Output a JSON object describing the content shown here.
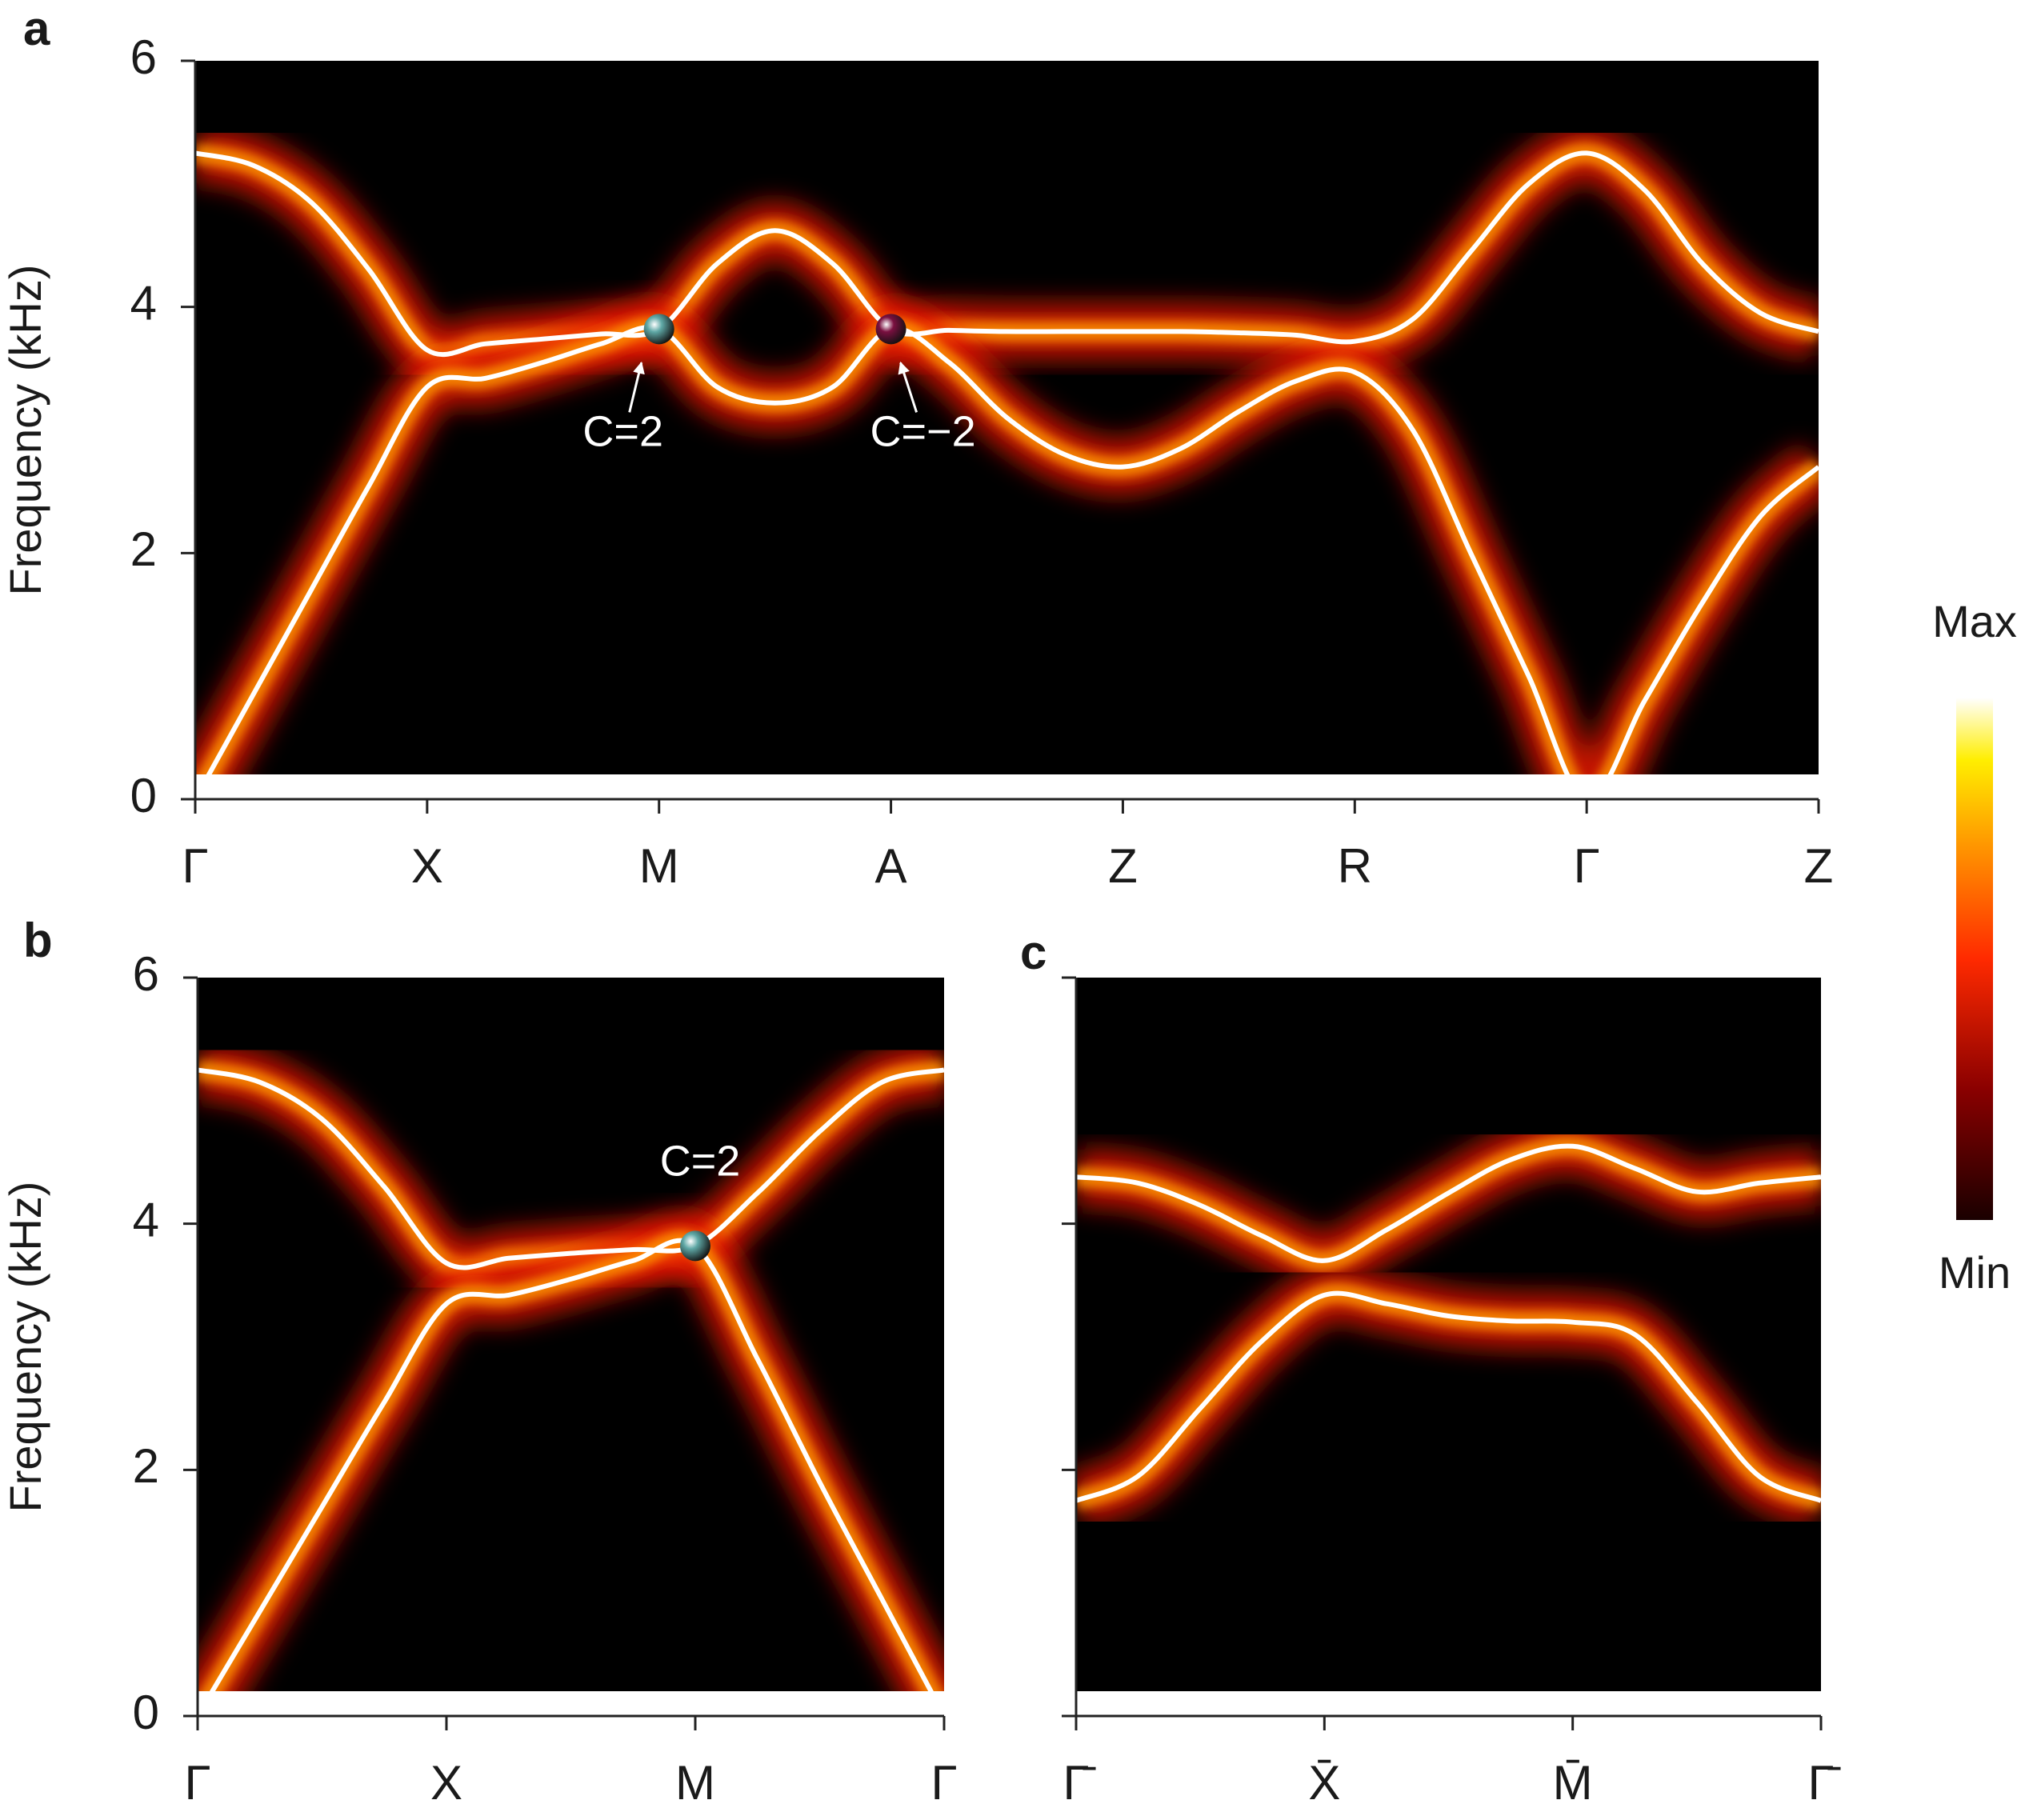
{
  "chart_data": [
    {
      "type": "line",
      "panel_label": "a",
      "y_label": "Frequency (kHz)",
      "x": [
        0,
        0.25,
        0.5,
        0.75,
        1,
        1.25,
        1.5,
        1.75,
        2,
        2.25,
        2.5,
        2.75,
        3,
        3.25,
        3.5,
        3.75,
        4,
        4.25,
        4.5,
        4.75,
        5,
        5.25,
        5.5,
        5.75,
        6,
        6.25,
        6.5,
        6.75,
        7
      ],
      "xlim": [
        0,
        7
      ],
      "xticks": [
        {
          "value": 0,
          "label": "Γ"
        },
        {
          "value": 1,
          "label": "X"
        },
        {
          "value": 2,
          "label": "M"
        },
        {
          "value": 3,
          "label": "A"
        },
        {
          "value": 4,
          "label": "Z"
        },
        {
          "value": 5,
          "label": "R"
        },
        {
          "value": 6,
          "label": "Γ"
        },
        {
          "value": 7,
          "label": "Z"
        }
      ],
      "ylim": [
        0,
        6
      ],
      "yticks": [
        0,
        2,
        4,
        6
      ],
      "series": [
        {
          "color": "#ffffff",
          "values": [
            5.25,
            5.15,
            4.85,
            4.3,
            3.65,
            3.7,
            3.74,
            3.78,
            3.82,
            4.35,
            4.62,
            4.35,
            3.82,
            3.81,
            3.8,
            3.8,
            3.8,
            3.8,
            3.79,
            3.77,
            3.72,
            3.9,
            4.45,
            5.0,
            5.25,
            4.95,
            4.35,
            3.95,
            3.8
          ]
        },
        {
          "color": "#ffffff",
          "values": [
            0,
            0.85,
            1.7,
            2.55,
            3.35,
            3.42,
            3.55,
            3.7,
            3.82,
            3.35,
            3.22,
            3.35,
            3.82,
            3.55,
            3.1,
            2.8,
            2.7,
            2.85,
            3.15,
            3.4,
            3.47,
            3.0,
            2.0,
            1.0,
            0,
            0.8,
            1.6,
            2.3,
            2.7
          ]
        }
      ],
      "annotations": [
        {
          "text": "C=2",
          "x": 2,
          "y": 3.82,
          "color": "#5fa8a6",
          "arrow": true
        },
        {
          "text": "C=−2",
          "x": 3,
          "y": 3.82,
          "color": "#7a1040",
          "arrow": true
        }
      ]
    },
    {
      "type": "line",
      "panel_label": "b",
      "y_label": "Frequency (kHz)",
      "x": [
        0,
        0.25,
        0.5,
        0.75,
        1,
        1.25,
        1.5,
        1.75,
        2,
        2.25,
        2.5,
        2.75,
        3
      ],
      "xlim": [
        0,
        3
      ],
      "xticks": [
        {
          "value": 0,
          "label": "Γ"
        },
        {
          "value": 1,
          "label": "X"
        },
        {
          "value": 2,
          "label": "M"
        },
        {
          "value": 3,
          "label": "Γ"
        }
      ],
      "ylim": [
        0,
        6
      ],
      "yticks": [
        0,
        2,
        4,
        6
      ],
      "series": [
        {
          "color": "#ffffff",
          "values": [
            5.25,
            5.15,
            4.85,
            4.3,
            3.68,
            3.72,
            3.76,
            3.79,
            3.82,
            4.25,
            4.75,
            5.15,
            5.25
          ]
        },
        {
          "color": "#ffffff",
          "values": [
            0,
            0.85,
            1.7,
            2.55,
            3.35,
            3.42,
            3.55,
            3.7,
            3.82,
            2.9,
            1.9,
            0.95,
            0
          ]
        }
      ],
      "annotations": [
        {
          "text": "C=2",
          "x": 2,
          "y": 3.82,
          "color": "#5fa8a6",
          "arrow": false
        }
      ]
    },
    {
      "type": "line",
      "panel_label": "c",
      "x": [
        0,
        0.25,
        0.5,
        0.75,
        1,
        1.25,
        1.5,
        1.75,
        2,
        2.25,
        2.5,
        2.75,
        3
      ],
      "xlim": [
        0,
        3
      ],
      "xticks": [
        {
          "value": 0,
          "label": "Γ̄"
        },
        {
          "value": 1,
          "label": "X̄"
        },
        {
          "value": 2,
          "label": "M̄"
        },
        {
          "value": 3,
          "label": "Γ̄"
        }
      ],
      "ylim": [
        0,
        6
      ],
      "series": [
        {
          "color": "#ffffff",
          "values": [
            4.38,
            4.33,
            4.15,
            3.9,
            3.7,
            3.95,
            4.25,
            4.52,
            4.63,
            4.45,
            4.26,
            4.33,
            4.38
          ]
        },
        {
          "color": "#ffffff",
          "values": [
            1.75,
            1.95,
            2.5,
            3.05,
            3.42,
            3.35,
            3.25,
            3.21,
            3.2,
            3.1,
            2.55,
            1.95,
            1.75
          ]
        }
      ]
    }
  ],
  "colorbar": {
    "max_label": "Max",
    "min_label": "Min"
  }
}
